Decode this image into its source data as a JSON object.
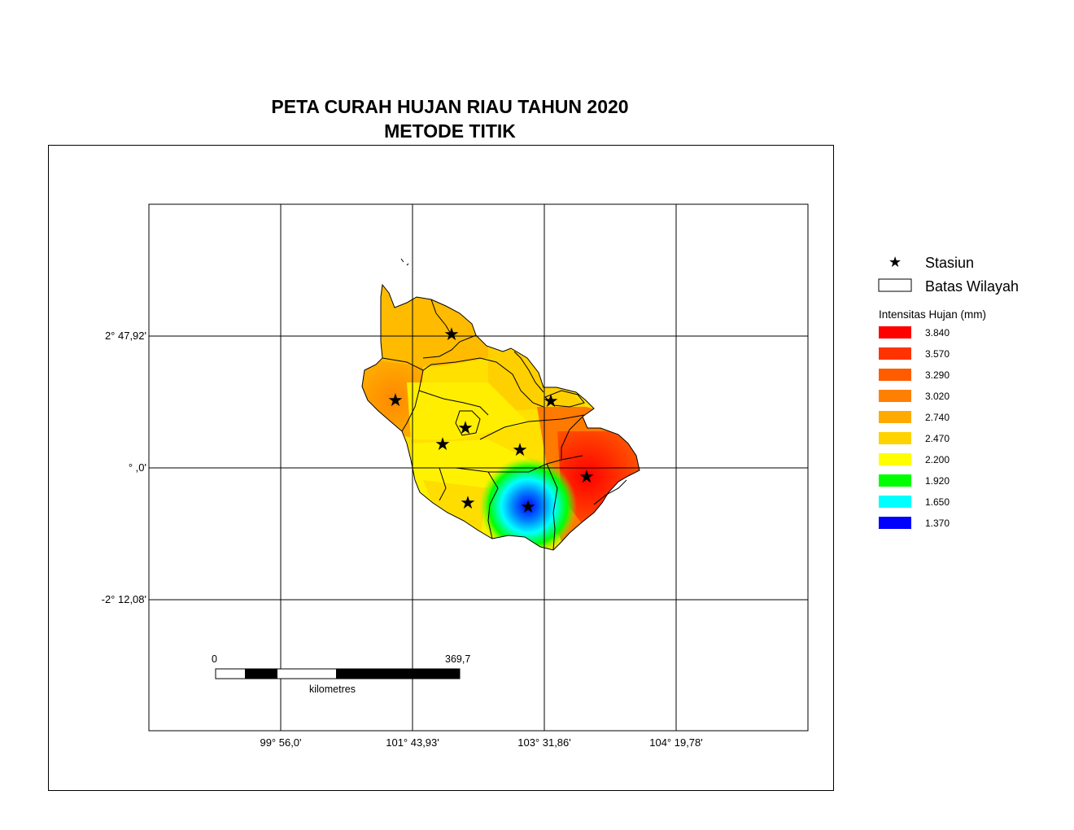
{
  "title_line1": "PETA CURAH HUJAN RIAU TAHUN 2020",
  "title_line2": "METODE TITIK",
  "grid": {
    "lat_labels": [
      "2° 47,92'",
      "° ,0'",
      "-2° 12,08'"
    ],
    "lon_labels": [
      "99° 56,0'",
      "101° 43,93'",
      "103° 31,86'",
      "104° 19,78'"
    ]
  },
  "legend": {
    "station_label": "Stasiun",
    "boundary_label": "Batas Wilayah",
    "intensity_title": "Intensitas Hujan (mm)",
    "classes": [
      {
        "label": "3.840",
        "color": "#ff0000"
      },
      {
        "label": "3.570",
        "color": "#ff3300"
      },
      {
        "label": "3.290",
        "color": "#ff5c00"
      },
      {
        "label": "3.020",
        "color": "#ff8000"
      },
      {
        "label": "2.740",
        "color": "#ffaa00"
      },
      {
        "label": "2.470",
        "color": "#ffd200"
      },
      {
        "label": "2.200",
        "color": "#ffff00"
      },
      {
        "label": "1.920",
        "color": "#00ff00"
      },
      {
        "label": "1.650",
        "color": "#00ffff"
      },
      {
        "label": "1.370",
        "color": "#0000ff"
      }
    ]
  },
  "scale_bar": {
    "start_label": "0",
    "end_label": "369,7",
    "unit_label": "kilometres"
  }
}
